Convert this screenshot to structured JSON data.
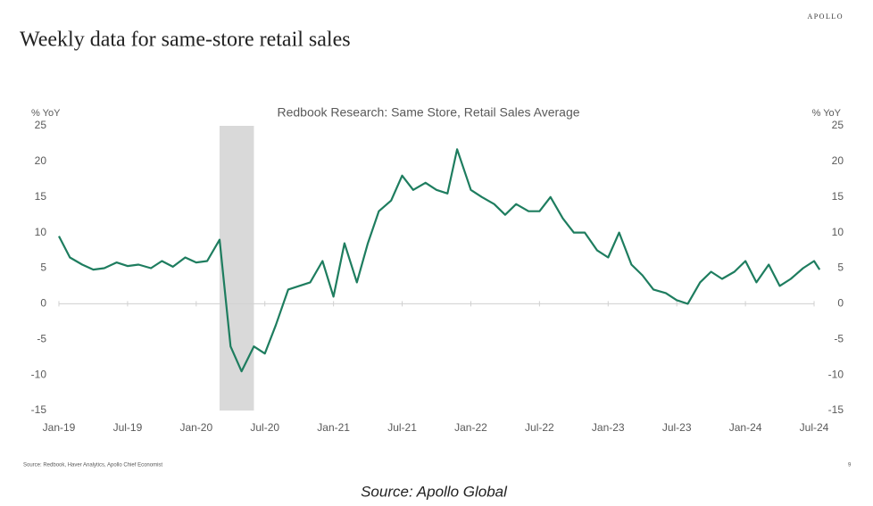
{
  "header": {
    "title": "Weekly data for same-store retail sales",
    "brand": "APOLLO"
  },
  "chart_data": {
    "type": "line",
    "title": "Redbook Research: Same Store, Retail Sales Average",
    "ylabel": "% YoY",
    "y2label": "% YoY",
    "x": [
      2019.0,
      2019.08,
      2019.17,
      2019.25,
      2019.33,
      2019.42,
      2019.5,
      2019.58,
      2019.67,
      2019.75,
      2019.83,
      2019.92,
      2020.0,
      2020.08,
      2020.17,
      2020.25,
      2020.33,
      2020.42,
      2020.5,
      2020.58,
      2020.67,
      2020.75,
      2020.83,
      2020.92,
      2021.0,
      2021.08,
      2021.17,
      2021.25,
      2021.33,
      2021.42,
      2021.5,
      2021.58,
      2021.67,
      2021.75,
      2021.83,
      2021.9,
      2022.0,
      2022.08,
      2022.17,
      2022.25,
      2022.33,
      2022.42,
      2022.5,
      2022.58,
      2022.67,
      2022.75,
      2022.83,
      2022.92,
      2023.0,
      2023.08,
      2023.17,
      2023.25,
      2023.33,
      2023.42,
      2023.5,
      2023.58,
      2023.67,
      2023.75,
      2023.83,
      2023.92,
      2024.0,
      2024.08,
      2024.17,
      2024.25,
      2024.33,
      2024.42,
      2024.5,
      2024.54
    ],
    "series": [
      {
        "name": "Redbook Research: Same Store, Retail Sales Average",
        "color": "#1e7d5f",
        "values": [
          9.5,
          6.5,
          5.5,
          4.8,
          5.0,
          5.8,
          5.3,
          5.5,
          5.0,
          6.0,
          5.2,
          6.5,
          5.8,
          6.0,
          9.0,
          -6.0,
          -9.5,
          -6.0,
          -7.0,
          -3.0,
          2.0,
          2.5,
          3.0,
          6.0,
          1.0,
          8.5,
          3.0,
          8.5,
          13.0,
          14.5,
          18.0,
          16.0,
          17.0,
          16.0,
          15.5,
          21.7,
          16.0,
          15.0,
          14.0,
          12.5,
          14.0,
          13.0,
          13.0,
          15.0,
          12.0,
          10.0,
          10.0,
          7.5,
          6.5,
          10.0,
          5.5,
          4.0,
          2.0,
          1.5,
          0.5,
          0.0,
          3.0,
          4.5,
          3.5,
          4.5,
          6.0,
          3.0,
          5.5,
          2.5,
          3.5,
          5.0,
          6.0,
          4.8
        ]
      }
    ],
    "shaded_region": [
      2020.17,
      2020.42
    ],
    "xlim": [
      2019.0,
      2024.5
    ],
    "xticks": [
      {
        "value": 2019.0,
        "label": "Jan-19"
      },
      {
        "value": 2019.5,
        "label": "Jul-19"
      },
      {
        "value": 2020.0,
        "label": "Jan-20"
      },
      {
        "value": 2020.5,
        "label": "Jul-20"
      },
      {
        "value": 2021.0,
        "label": "Jan-21"
      },
      {
        "value": 2021.5,
        "label": "Jul-21"
      },
      {
        "value": 2022.0,
        "label": "Jan-22"
      },
      {
        "value": 2022.5,
        "label": "Jul-22"
      },
      {
        "value": 2023.0,
        "label": "Jan-23"
      },
      {
        "value": 2023.5,
        "label": "Jul-23"
      },
      {
        "value": 2024.0,
        "label": "Jan-24"
      },
      {
        "value": 2024.5,
        "label": "Jul-24"
      }
    ],
    "ylim": [
      -15,
      25
    ],
    "yticks": [
      -15,
      -10,
      -5,
      0,
      5,
      10,
      15,
      20,
      25
    ],
    "y2lim": [
      -15,
      25
    ],
    "y2ticks": [
      -15,
      -10,
      -5,
      0,
      5,
      10,
      15,
      20,
      25
    ],
    "grid": false
  },
  "footer": {
    "note": "Source: Redbook, Haver Analytics, Apollo Chief Economist",
    "page": "9",
    "caption": "Source: Apollo Global"
  }
}
